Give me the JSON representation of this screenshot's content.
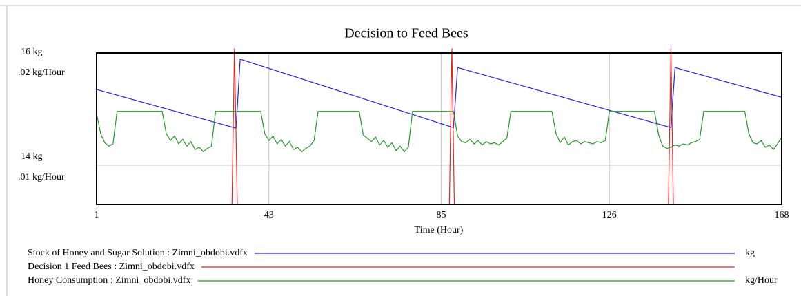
{
  "chart_data": {
    "type": "line",
    "title": "Decision to Feed Bees",
    "x_label": "Time (Hour)",
    "xlim": [
      1,
      168
    ],
    "xticks": [
      1,
      43,
      85,
      126,
      168
    ],
    "ylim": [
      13.3,
      16
    ],
    "yticks": [
      {
        "value": 14,
        "label": "14 kg"
      },
      {
        "value": 16,
        "label": "16 kg"
      }
    ],
    "y2lim": [
      0.0065,
      0.02
    ],
    "y2ticks": [
      {
        "value": 0.01,
        "label": ".01 kg/Hour"
      },
      {
        "value": 0.02,
        "label": ".02 kg/Hour"
      }
    ],
    "y3lim": [
      0,
      1
    ],
    "grid": true,
    "series": [
      {
        "name": "Stock of Honey and Sugar Solution : Zimni_obdobi.vdfx",
        "units": "kg",
        "color": "#2222ee",
        "axis": "y",
        "x": [
          1,
          35,
          36,
          88,
          89,
          141,
          142,
          168
        ],
        "values": [
          15.35,
          14.66,
          15.89,
          14.67,
          15.74,
          14.67,
          15.74,
          15.21
        ]
      },
      {
        "name": "Decision 1 Feed Bees : Zimni_obdobi.vdfx",
        "color": "#ee2222",
        "axis": "y3",
        "x": [
          1,
          34,
          34.6,
          35.3,
          87,
          87.6,
          88.2,
          140.4,
          141,
          141.6,
          168
        ],
        "values": [
          0,
          0,
          1.03,
          0,
          0,
          1.03,
          0,
          0,
          1.03,
          0,
          0
        ]
      },
      {
        "name": "Honey Consumption : Zimni_obdobi.vdfx",
        "units": "kg/Hour",
        "color": "#229922",
        "axis": "y2",
        "x": [
          1,
          2,
          3,
          4,
          5,
          6,
          17,
          18,
          19,
          20,
          21,
          22,
          23,
          24,
          25,
          26,
          27,
          28,
          29,
          30,
          41,
          42,
          43,
          44,
          45,
          46,
          47,
          48,
          49,
          50,
          51,
          52,
          53,
          54,
          55,
          65,
          66,
          67,
          68,
          69,
          70,
          71,
          72,
          73,
          74,
          75,
          76,
          77,
          78,
          88,
          89,
          90,
          91,
          92,
          93,
          94,
          95,
          96,
          97,
          98,
          99,
          100,
          101,
          102,
          112,
          113,
          114,
          115,
          116,
          117,
          118,
          119,
          120,
          121,
          122,
          123,
          124,
          125,
          126,
          137,
          138,
          139,
          140,
          141,
          142,
          143,
          144,
          145,
          146,
          147,
          148,
          149,
          159,
          160,
          161,
          162,
          163,
          164,
          165,
          166,
          167,
          168
        ],
        "values": [
          0.0146,
          0.0128,
          0.012,
          0.0117,
          0.0119,
          0.0148,
          0.0148,
          0.0128,
          0.0122,
          0.0126,
          0.0119,
          0.0123,
          0.0117,
          0.0121,
          0.0114,
          0.0116,
          0.0112,
          0.0115,
          0.0117,
          0.0148,
          0.0148,
          0.0128,
          0.0122,
          0.0126,
          0.0119,
          0.0123,
          0.0117,
          0.0121,
          0.0114,
          0.0116,
          0.0112,
          0.0115,
          0.0117,
          0.0122,
          0.0148,
          0.0148,
          0.0127,
          0.0124,
          0.0121,
          0.0125,
          0.0118,
          0.0122,
          0.0116,
          0.012,
          0.0113,
          0.0117,
          0.0112,
          0.0116,
          0.0148,
          0.0148,
          0.0126,
          0.0121,
          0.012,
          0.0123,
          0.0119,
          0.0122,
          0.0118,
          0.0121,
          0.0119,
          0.012,
          0.0118,
          0.0121,
          0.0124,
          0.0148,
          0.0148,
          0.0128,
          0.012,
          0.0125,
          0.0118,
          0.0121,
          0.0122,
          0.0119,
          0.0121,
          0.012,
          0.0119,
          0.0121,
          0.012,
          0.0122,
          0.0148,
          0.0148,
          0.0127,
          0.0117,
          0.0115,
          0.0116,
          0.0118,
          0.0117,
          0.0119,
          0.0118,
          0.012,
          0.0121,
          0.0123,
          0.0148,
          0.0148,
          0.0128,
          0.012,
          0.0119,
          0.0122,
          0.0116,
          0.0118,
          0.0114,
          0.0119,
          0.0125
        ]
      }
    ]
  }
}
